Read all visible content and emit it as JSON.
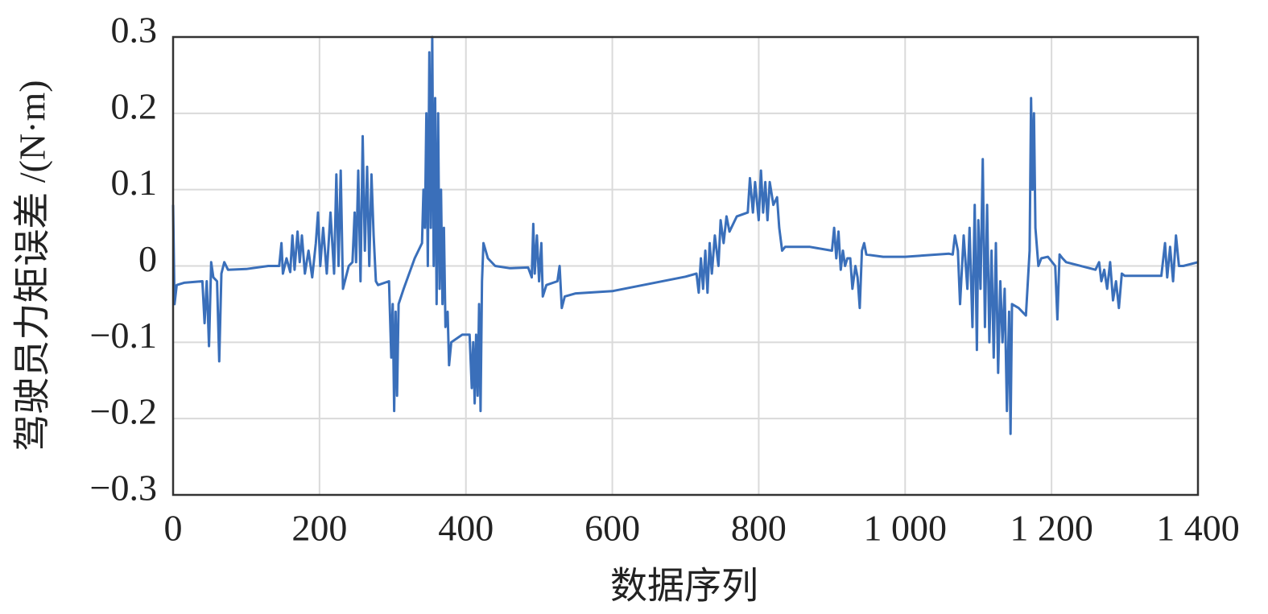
{
  "chart_data": {
    "type": "line",
    "ylabel": "驾驶员力矩误差 /(N·m)",
    "xlabel": "数据序列",
    "color": "#3a6fba",
    "grid": true,
    "xlim": [
      0,
      1400
    ],
    "ylim": [
      -0.3,
      0.3
    ],
    "xticks": [
      0,
      200,
      400,
      600,
      800,
      {
        "value": 1000,
        "label": "1 000"
      },
      {
        "value": 1200,
        "label": "1 200"
      },
      {
        "value": 1400,
        "label": "1 400"
      }
    ],
    "yticks": [
      {
        "value": -0.3,
        "label": "−0.3"
      },
      {
        "value": -0.2,
        "label": "−0.2"
      },
      {
        "value": -0.1,
        "label": "−0.1"
      },
      0,
      0.1,
      0.2,
      0.3
    ],
    "x": [
      0,
      2,
      5,
      15,
      40,
      43,
      46,
      49,
      52,
      55,
      60,
      63,
      66,
      70,
      75,
      100,
      130,
      145,
      148,
      150,
      155,
      160,
      163,
      166,
      170,
      173,
      176,
      180,
      185,
      190,
      195,
      198,
      201,
      205,
      210,
      215,
      220,
      223,
      226,
      229,
      232,
      240,
      245,
      248,
      250,
      253,
      256,
      259,
      262,
      265,
      268,
      271,
      274,
      277,
      280,
      295,
      298,
      300,
      302,
      304,
      306,
      308,
      315,
      330,
      340,
      342,
      344,
      346,
      348,
      350,
      352,
      354,
      356,
      358,
      360,
      362,
      364,
      366,
      368,
      370,
      372,
      375,
      377,
      380,
      395,
      405,
      408,
      410,
      412,
      414,
      416,
      418,
      420,
      422,
      424,
      430,
      440,
      460,
      485,
      490,
      492,
      494,
      497,
      500,
      503,
      505,
      510,
      525,
      528,
      531,
      535,
      550,
      600,
      700,
      715,
      718,
      721,
      724,
      727,
      730,
      733,
      736,
      740,
      745,
      748,
      752,
      756,
      760,
      770,
      785,
      788,
      792,
      795,
      800,
      803,
      806,
      809,
      812,
      815,
      820,
      825,
      828,
      832,
      836,
      870,
      900,
      903,
      906,
      909,
      912,
      915,
      918,
      921,
      925,
      928,
      932,
      935,
      938,
      941,
      944,
      947,
      970,
      1000,
      1060,
      1065,
      1068,
      1072,
      1075,
      1080,
      1085,
      1088,
      1092,
      1095,
      1098,
      1100,
      1103,
      1106,
      1109,
      1112,
      1115,
      1118,
      1121,
      1124,
      1127,
      1130,
      1133,
      1136,
      1139,
      1142,
      1144,
      1146,
      1155,
      1165,
      1170,
      1172,
      1174,
      1176,
      1178,
      1182,
      1186,
      1195,
      1205,
      1208,
      1211,
      1215,
      1220,
      1260,
      1265,
      1268,
      1272,
      1276,
      1280,
      1284,
      1288,
      1292,
      1296,
      1300,
      1350,
      1355,
      1358,
      1362,
      1366,
      1370,
      1374,
      1380,
      1400
    ],
    "values": [
      0.08,
      -0.05,
      -0.025,
      -0.022,
      -0.02,
      -0.075,
      -0.02,
      -0.105,
      0.005,
      -0.015,
      -0.02,
      -0.125,
      -0.01,
      0.005,
      -0.005,
      -0.004,
      0,
      0,
      0.03,
      -0.01,
      0.01,
      -0.008,
      0.04,
      -0.005,
      0.045,
      0.005,
      0.04,
      -0.01,
      0.02,
      -0.015,
      0.03,
      0.07,
      0.0,
      0.05,
      -0.01,
      0.07,
      -0.01,
      0.12,
      0.0,
      0.125,
      -0.03,
      0.0,
      0.005,
      0.07,
      0.005,
      0.125,
      -0.02,
      0.17,
      0.02,
      0.13,
      0.0,
      0.12,
      0.04,
      -0.02,
      -0.025,
      -0.02,
      -0.12,
      -0.05,
      -0.19,
      -0.06,
      -0.17,
      -0.05,
      -0.03,
      0.01,
      0.03,
      0.1,
      0.05,
      0.2,
      0.0,
      0.28,
      0.05,
      0.3,
      0.0,
      0.22,
      -0.05,
      0.2,
      -0.03,
      0.1,
      -0.05,
      0.05,
      -0.08,
      -0.06,
      -0.13,
      -0.1,
      -0.09,
      -0.09,
      -0.16,
      -0.1,
      -0.18,
      -0.09,
      -0.17,
      -0.05,
      -0.19,
      -0.02,
      0.03,
      0.01,
      0.0,
      -0.003,
      -0.002,
      -0.015,
      0.055,
      -0.01,
      0.04,
      -0.02,
      0.03,
      -0.04,
      -0.025,
      -0.02,
      0.0,
      -0.055,
      -0.04,
      -0.036,
      -0.033,
      -0.014,
      -0.01,
      -0.035,
      0.01,
      -0.03,
      0.02,
      -0.035,
      0.03,
      -0.01,
      0.04,
      0.0,
      0.06,
      0.03,
      0.065,
      0.045,
      0.065,
      0.07,
      0.115,
      0.07,
      0.11,
      0.06,
      0.125,
      0.07,
      0.11,
      0.06,
      0.11,
      0.08,
      0.09,
      0.05,
      0.02,
      0.025,
      0.025,
      0.02,
      0.05,
      0.01,
      0.045,
      -0.005,
      0.02,
      0.0,
      0.01,
      0.01,
      -0.03,
      0.0,
      -0.015,
      -0.055,
      0.02,
      0.03,
      0.015,
      0.012,
      0.012,
      0.016,
      0.015,
      0.04,
      0.02,
      -0.05,
      0.04,
      -0.03,
      0.05,
      -0.08,
      0.08,
      -0.11,
      0.06,
      -0.03,
      0.14,
      -0.08,
      0.08,
      -0.1,
      0.02,
      -0.12,
      0.03,
      -0.14,
      -0.02,
      -0.1,
      -0.03,
      -0.19,
      -0.06,
      -0.22,
      -0.05,
      -0.055,
      -0.065,
      0.02,
      0.22,
      0.1,
      0.2,
      0.05,
      0.0,
      0.01,
      0.012,
      0.0,
      -0.07,
      0.015,
      0.01,
      0.005,
      -0.005,
      0.005,
      -0.02,
      -0.005,
      -0.03,
      0.005,
      -0.045,
      -0.02,
      -0.055,
      -0.01,
      -0.013,
      -0.013,
      0.03,
      -0.015,
      0.025,
      -0.02,
      0.04,
      0.0,
      0.0,
      0.005
    ]
  }
}
